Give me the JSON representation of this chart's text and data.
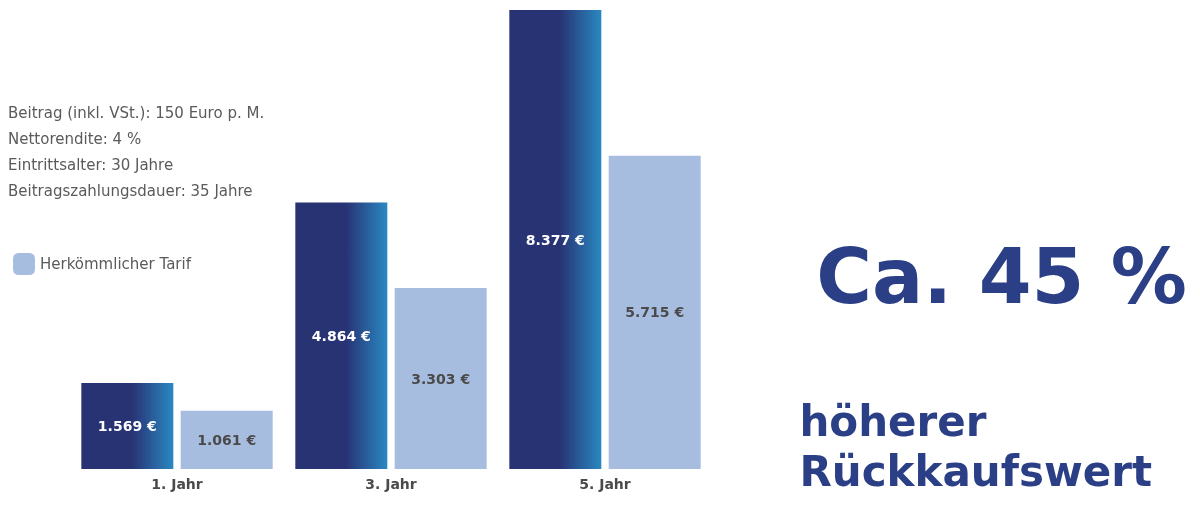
{
  "chart_data": {
    "type": "bar",
    "categories": [
      "1. Jahr",
      "3. Jahr",
      "5. Jahr"
    ],
    "series": [
      {
        "color": "#283374",
        "values": [
          1569,
          4864,
          8377
        ],
        "value_labels": [
          "1.569 €",
          "4.864 €",
          "8.377 €"
        ]
      },
      {
        "name": "Herkömmlicher Tarif",
        "color": "#a7bddf",
        "values": [
          1061,
          3303,
          5715
        ],
        "value_labels": [
          "1.061 €",
          "3.303 €",
          "5.715 €"
        ]
      }
    ],
    "legend": "left",
    "annotations": [
      "Beitrag (inkl. VSt.): 150 Euro p. M.",
      "Nettorendite: 4 %",
      "Eintrittsalter: 30 Jahre",
      "Beitragszahlungsdauer: 35 Jahre",
      "Ca. 45 %",
      "höherer Rückkaufswert"
    ]
  }
}
